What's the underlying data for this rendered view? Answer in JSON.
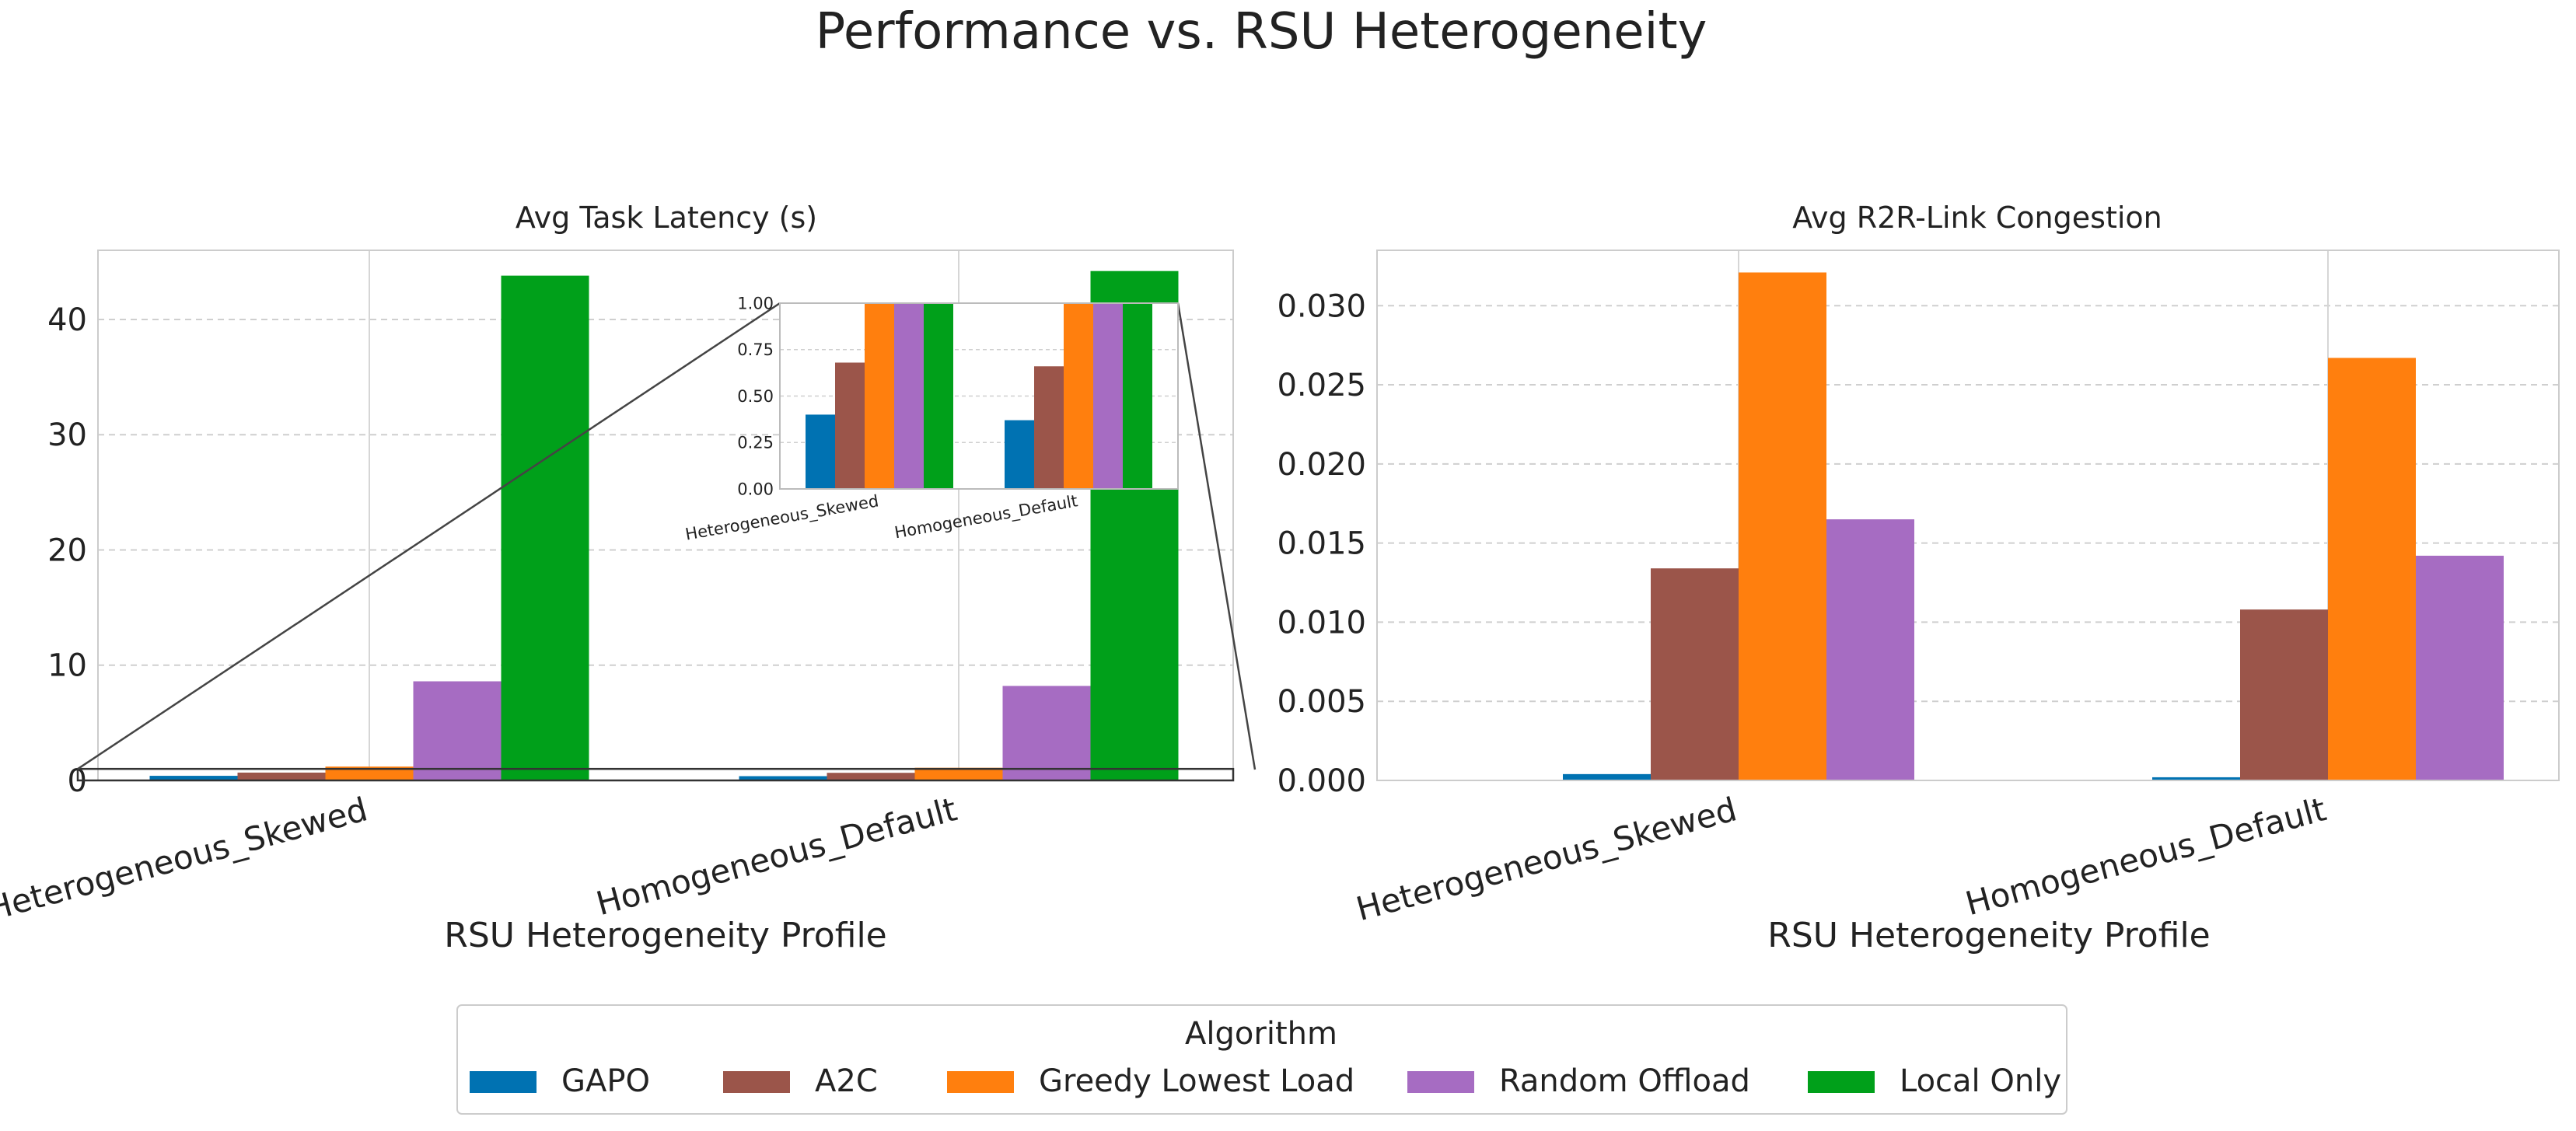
{
  "figure": {
    "title": "Performance vs. RSU Heterogeneity"
  },
  "legend": {
    "title": "Algorithm",
    "placement": "bottom-center"
  },
  "series_colors": {
    "GAPO": "#0072B2",
    "A2C": "#9B554A",
    "Greedy Lowest Load": "#FF7F0E",
    "Random Offload": "#A66CC2",
    "Local Only": "#00A01A"
  },
  "chart_data": [
    {
      "id": "latency",
      "type": "bar",
      "title": "Avg Task Latency (s)",
      "xlabel": "RSU Heterogeneity Profile",
      "ylabel": "",
      "categories": [
        "Heterogeneous_Skewed",
        "Homogeneous_Default"
      ],
      "ylim": [
        0,
        46
      ],
      "yticks": [
        0,
        10,
        20,
        30,
        40
      ],
      "grid": true,
      "series": [
        {
          "name": "GAPO",
          "values": [
            0.4,
            0.37
          ]
        },
        {
          "name": "A2C",
          "values": [
            0.68,
            0.66
          ]
        },
        {
          "name": "Greedy Lowest Load",
          "values": [
            1.2,
            1.1
          ]
        },
        {
          "name": "Random Offload",
          "values": [
            8.6,
            8.2
          ]
        },
        {
          "name": "Local Only",
          "values": [
            43.8,
            44.2
          ]
        }
      ],
      "inset": {
        "ylim": [
          0,
          1.0
        ],
        "yticks": [
          "0.00",
          "0.25",
          "0.50",
          "0.75",
          "1.00"
        ],
        "ytick_values": [
          0,
          0.25,
          0.5,
          0.75,
          1.0
        ],
        "categories": [
          "Heterogeneous_Skewed",
          "Homogeneous_Default"
        ],
        "zoom_region": [
          0,
          1.0
        ]
      }
    },
    {
      "id": "congestion",
      "type": "bar",
      "title": "Avg R2R-Link Congestion",
      "xlabel": "RSU Heterogeneity Profile",
      "ylabel": "",
      "categories": [
        "Heterogeneous_Skewed",
        "Homogeneous_Default"
      ],
      "ylim": [
        0,
        0.0335
      ],
      "yticks": [
        "0.000",
        "0.005",
        "0.010",
        "0.015",
        "0.020",
        "0.025",
        "0.030"
      ],
      "ytick_values": [
        0,
        0.005,
        0.01,
        0.015,
        0.02,
        0.025,
        0.03
      ],
      "grid": true,
      "series": [
        {
          "name": "GAPO",
          "values": [
            0.0004,
            0.0002
          ]
        },
        {
          "name": "A2C",
          "values": [
            0.0134,
            0.0108
          ]
        },
        {
          "name": "Greedy Lowest Load",
          "values": [
            0.0321,
            0.0267
          ]
        },
        {
          "name": "Random Offload",
          "values": [
            0.0165,
            0.0142
          ]
        }
      ]
    }
  ]
}
